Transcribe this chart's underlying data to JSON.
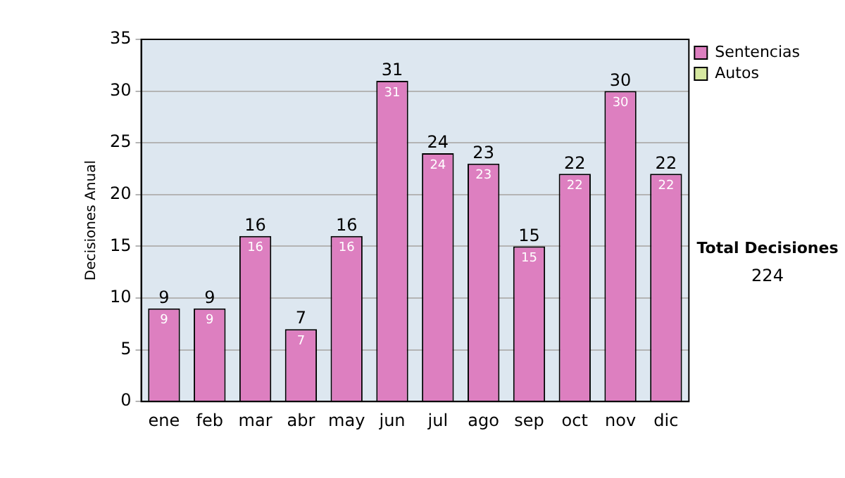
{
  "chart_data": {
    "type": "bar",
    "ylabel": "Decisiones Anual",
    "categories": [
      "ene",
      "feb",
      "mar",
      "abr",
      "may",
      "jun",
      "jul",
      "ago",
      "sep",
      "oct",
      "nov",
      "dic"
    ],
    "series": [
      {
        "name": "Sentencias",
        "color": "#dd7fc0",
        "values": [
          9,
          9,
          16,
          7,
          16,
          31,
          24,
          23,
          15,
          22,
          30,
          22
        ],
        "value_labels": [
          "9",
          "9",
          "16",
          "7",
          "16",
          "31",
          "24",
          "23",
          "15",
          "22",
          "30",
          "22"
        ]
      },
      {
        "name": "Autos",
        "color": "#d6e8a0",
        "values": [
          0,
          0,
          0,
          0,
          0,
          0,
          0,
          0,
          0,
          0,
          0,
          0
        ],
        "value_labels": [
          null,
          null,
          null,
          null,
          null,
          null,
          null,
          null,
          null,
          null,
          null,
          null
        ]
      }
    ],
    "stacked": true,
    "totals": [
      "9",
      "9",
      "16",
      "7",
      "16",
      "31",
      "24",
      "23",
      "15",
      "22",
      "30",
      "22"
    ],
    "ylim": [
      0,
      35
    ],
    "yticks": [
      0,
      5,
      10,
      15,
      20,
      25,
      30,
      35
    ],
    "grid": "y",
    "legend": "right",
    "annotations": [
      "Total Decisiones",
      "224"
    ]
  }
}
